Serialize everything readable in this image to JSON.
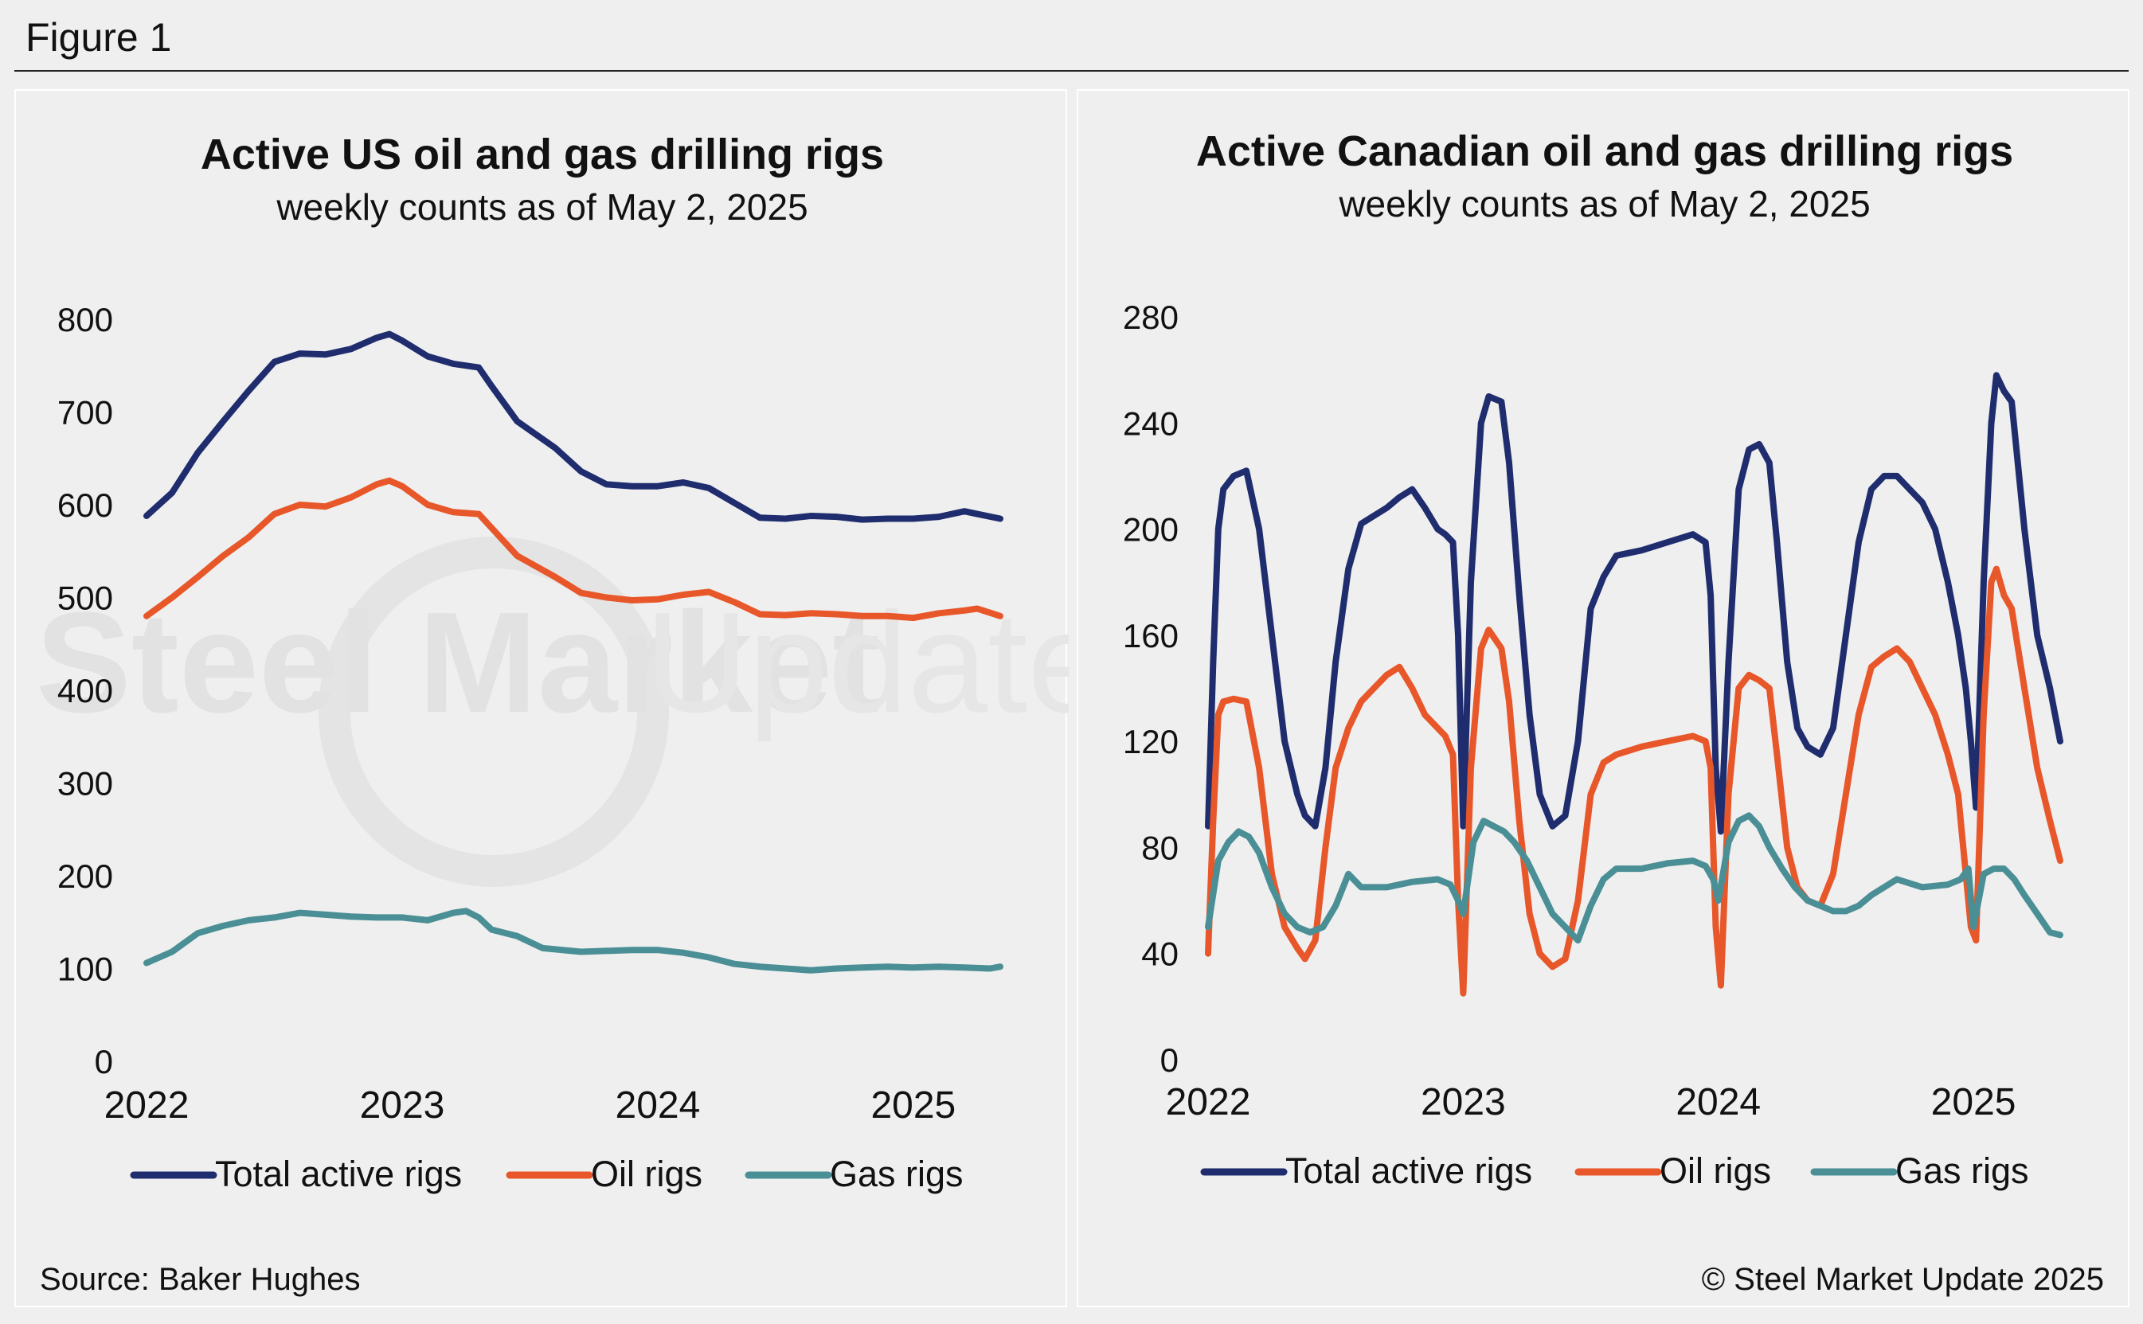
{
  "figure_title": "Figure 1",
  "source": "Source: Baker Hughes",
  "copyright": "© Steel Market Update 2025",
  "watermark": {
    "bold": "Steel Market",
    "light": "Update"
  },
  "colors": {
    "total": "#1f2d6e",
    "oil": "#e8572a",
    "gas": "#4a8f95",
    "background": "#efefef"
  },
  "legend": [
    {
      "key": "total",
      "label": "Total active rigs"
    },
    {
      "key": "oil",
      "label": "Oil rigs"
    },
    {
      "key": "gas",
      "label": "Gas rigs"
    }
  ],
  "chart_data": [
    {
      "type": "line",
      "title": "Active US oil and gas drilling rigs",
      "subtitle": "weekly counts as of May 2, 2025",
      "xlabel": "",
      "ylabel": "",
      "xlim": [
        2022.0,
        2025.34
      ],
      "ylim": [
        0,
        800
      ],
      "yticks": [
        0,
        100,
        200,
        300,
        400,
        500,
        600,
        700,
        800
      ],
      "xticks": [
        2022,
        2023,
        2024,
        2025
      ],
      "grid": false,
      "legend_position": "bottom",
      "series": [
        {
          "name": "Total active rigs",
          "key": "total",
          "x": [
            2022.0,
            2022.1,
            2022.2,
            2022.3,
            2022.4,
            2022.5,
            2022.6,
            2022.7,
            2022.8,
            2022.9,
            2022.95,
            2023.0,
            2023.1,
            2023.2,
            2023.3,
            2023.35,
            2023.45,
            2023.6,
            2023.7,
            2023.8,
            2023.9,
            2024.0,
            2024.1,
            2024.2,
            2024.3,
            2024.4,
            2024.5,
            2024.6,
            2024.7,
            2024.8,
            2024.9,
            2025.0,
            2025.1,
            2025.2,
            2025.25,
            2025.34
          ],
          "values": [
            588,
            613,
            656,
            690,
            723,
            754,
            763,
            762,
            768,
            780,
            784,
            777,
            760,
            752,
            748,
            728,
            690,
            661,
            636,
            622,
            620,
            620,
            624,
            618,
            602,
            586,
            585,
            588,
            587,
            584,
            585,
            585,
            587,
            593,
            590,
            585
          ]
        },
        {
          "name": "Oil rigs",
          "key": "oil",
          "x": [
            2022.0,
            2022.1,
            2022.2,
            2022.3,
            2022.4,
            2022.5,
            2022.6,
            2022.7,
            2022.8,
            2022.9,
            2022.95,
            2023.0,
            2023.1,
            2023.2,
            2023.3,
            2023.35,
            2023.45,
            2023.6,
            2023.7,
            2023.8,
            2023.9,
            2024.0,
            2024.1,
            2024.2,
            2024.3,
            2024.4,
            2024.5,
            2024.6,
            2024.7,
            2024.8,
            2024.9,
            2025.0,
            2025.1,
            2025.2,
            2025.25,
            2025.34
          ],
          "values": [
            480,
            500,
            522,
            545,
            565,
            590,
            600,
            598,
            608,
            622,
            626,
            620,
            600,
            592,
            590,
            575,
            545,
            522,
            505,
            500,
            497,
            498,
            503,
            506,
            495,
            482,
            481,
            483,
            482,
            480,
            480,
            478,
            483,
            486,
            488,
            480
          ]
        },
        {
          "name": "Gas rigs",
          "key": "gas",
          "x": [
            2022.0,
            2022.1,
            2022.2,
            2022.3,
            2022.4,
            2022.5,
            2022.6,
            2022.7,
            2022.8,
            2022.9,
            2023.0,
            2023.1,
            2023.2,
            2023.25,
            2023.3,
            2023.35,
            2023.45,
            2023.55,
            2023.7,
            2023.9,
            2024.0,
            2024.1,
            2024.2,
            2024.3,
            2024.4,
            2024.5,
            2024.6,
            2024.7,
            2024.8,
            2024.9,
            2025.0,
            2025.1,
            2025.2,
            2025.3,
            2025.34
          ],
          "values": [
            106,
            118,
            138,
            146,
            152,
            155,
            160,
            158,
            156,
            155,
            155,
            152,
            160,
            162,
            155,
            142,
            135,
            122,
            118,
            120,
            120,
            117,
            112,
            105,
            102,
            100,
            98,
            100,
            101,
            102,
            101,
            102,
            101,
            100,
            102
          ]
        }
      ]
    },
    {
      "type": "line",
      "title": "Active Canadian oil and gas drilling rigs",
      "subtitle": "weekly counts as of May 2, 2025",
      "xlabel": "",
      "ylabel": "",
      "xlim": [
        2022.0,
        2025.34
      ],
      "ylim": [
        0,
        280
      ],
      "yticks": [
        0,
        40,
        80,
        120,
        160,
        200,
        240,
        280
      ],
      "xticks": [
        2022,
        2023,
        2024,
        2025
      ],
      "grid": false,
      "legend_position": "bottom",
      "series": [
        {
          "name": "Total active rigs",
          "key": "total",
          "x": [
            2022.0,
            2022.02,
            2022.04,
            2022.06,
            2022.1,
            2022.15,
            2022.2,
            2022.25,
            2022.3,
            2022.35,
            2022.38,
            2022.42,
            2022.46,
            2022.5,
            2022.55,
            2022.6,
            2022.65,
            2022.7,
            2022.75,
            2022.8,
            2022.85,
            2022.9,
            2022.93,
            2022.96,
            2022.98,
            2023.0,
            2023.03,
            2023.07,
            2023.1,
            2023.15,
            2023.18,
            2023.22,
            2023.26,
            2023.3,
            2023.35,
            2023.4,
            2023.45,
            2023.5,
            2023.55,
            2023.6,
            2023.7,
            2023.8,
            2023.9,
            2023.95,
            2023.97,
            2023.99,
            2024.01,
            2024.04,
            2024.08,
            2024.12,
            2024.16,
            2024.2,
            2024.23,
            2024.27,
            2024.31,
            2024.35,
            2024.4,
            2024.45,
            2024.5,
            2024.55,
            2024.6,
            2024.65,
            2024.7,
            2024.75,
            2024.8,
            2024.85,
            2024.9,
            2024.94,
            2024.97,
            2024.99,
            2025.01,
            2025.04,
            2025.07,
            2025.09,
            2025.12,
            2025.15,
            2025.2,
            2025.25,
            2025.3,
            2025.34
          ],
          "values": [
            88,
            150,
            200,
            215,
            220,
            222,
            200,
            160,
            120,
            100,
            92,
            88,
            110,
            150,
            185,
            202,
            205,
            208,
            212,
            215,
            208,
            200,
            198,
            195,
            160,
            88,
            180,
            240,
            250,
            248,
            225,
            175,
            130,
            100,
            88,
            92,
            120,
            170,
            182,
            190,
            192,
            195,
            198,
            195,
            175,
            110,
            86,
            150,
            215,
            230,
            232,
            225,
            195,
            150,
            125,
            118,
            115,
            125,
            160,
            195,
            215,
            220,
            220,
            215,
            210,
            200,
            180,
            160,
            140,
            120,
            95,
            180,
            240,
            258,
            252,
            248,
            200,
            160,
            140,
            120
          ]
        },
        {
          "name": "Oil rigs",
          "key": "oil",
          "x": [
            2022.0,
            2022.02,
            2022.04,
            2022.06,
            2022.1,
            2022.15,
            2022.2,
            2022.25,
            2022.3,
            2022.35,
            2022.38,
            2022.42,
            2022.46,
            2022.5,
            2022.55,
            2022.6,
            2022.65,
            2022.7,
            2022.75,
            2022.8,
            2022.85,
            2022.9,
            2022.93,
            2022.96,
            2022.98,
            2023.0,
            2023.03,
            2023.07,
            2023.1,
            2023.15,
            2023.18,
            2023.22,
            2023.26,
            2023.3,
            2023.35,
            2023.4,
            2023.45,
            2023.5,
            2023.55,
            2023.6,
            2023.7,
            2023.8,
            2023.9,
            2023.95,
            2023.97,
            2023.99,
            2024.01,
            2024.04,
            2024.08,
            2024.12,
            2024.16,
            2024.2,
            2024.23,
            2024.27,
            2024.31,
            2024.35,
            2024.4,
            2024.45,
            2024.5,
            2024.55,
            2024.6,
            2024.65,
            2024.7,
            2024.75,
            2024.8,
            2024.85,
            2024.9,
            2024.94,
            2024.97,
            2024.99,
            2025.01,
            2025.04,
            2025.07,
            2025.09,
            2025.12,
            2025.15,
            2025.2,
            2025.25,
            2025.3,
            2025.34
          ],
          "values": [
            40,
            90,
            130,
            135,
            136,
            135,
            110,
            70,
            50,
            42,
            38,
            45,
            80,
            110,
            125,
            135,
            140,
            145,
            148,
            140,
            130,
            125,
            122,
            115,
            60,
            25,
            110,
            155,
            162,
            155,
            135,
            90,
            55,
            40,
            35,
            38,
            60,
            100,
            112,
            115,
            118,
            120,
            122,
            120,
            110,
            50,
            28,
            100,
            140,
            145,
            143,
            140,
            115,
            80,
            65,
            60,
            58,
            70,
            100,
            130,
            148,
            152,
            155,
            150,
            140,
            130,
            115,
            100,
            70,
            50,
            45,
            130,
            180,
            185,
            175,
            170,
            140,
            110,
            90,
            75
          ]
        },
        {
          "name": "Gas rigs",
          "key": "gas",
          "x": [
            2022.0,
            2022.04,
            2022.08,
            2022.12,
            2022.16,
            2022.2,
            2022.25,
            2022.3,
            2022.35,
            2022.4,
            2022.45,
            2022.5,
            2022.55,
            2022.6,
            2022.7,
            2022.8,
            2022.9,
            2022.95,
            2022.98,
            2023.0,
            2023.04,
            2023.08,
            2023.12,
            2023.16,
            2023.2,
            2023.25,
            2023.3,
            2023.35,
            2023.4,
            2023.45,
            2023.5,
            2023.55,
            2023.6,
            2023.7,
            2023.8,
            2023.9,
            2023.95,
            2023.98,
            2024.0,
            2024.04,
            2024.08,
            2024.12,
            2024.16,
            2024.2,
            2024.25,
            2024.3,
            2024.35,
            2024.4,
            2024.45,
            2024.5,
            2024.55,
            2024.6,
            2024.7,
            2024.8,
            2024.9,
            2024.95,
            2024.98,
            2025.0,
            2025.04,
            2025.08,
            2025.12,
            2025.16,
            2025.2,
            2025.25,
            2025.3,
            2025.34
          ],
          "values": [
            50,
            75,
            82,
            86,
            84,
            78,
            65,
            55,
            50,
            48,
            50,
            58,
            70,
            65,
            65,
            67,
            68,
            66,
            60,
            55,
            82,
            90,
            88,
            86,
            82,
            75,
            65,
            55,
            50,
            45,
            58,
            68,
            72,
            72,
            74,
            75,
            73,
            68,
            60,
            82,
            90,
            92,
            88,
            80,
            72,
            65,
            60,
            58,
            56,
            56,
            58,
            62,
            68,
            65,
            66,
            68,
            72,
            50,
            70,
            72,
            72,
            68,
            62,
            55,
            48,
            47
          ]
        }
      ]
    }
  ]
}
